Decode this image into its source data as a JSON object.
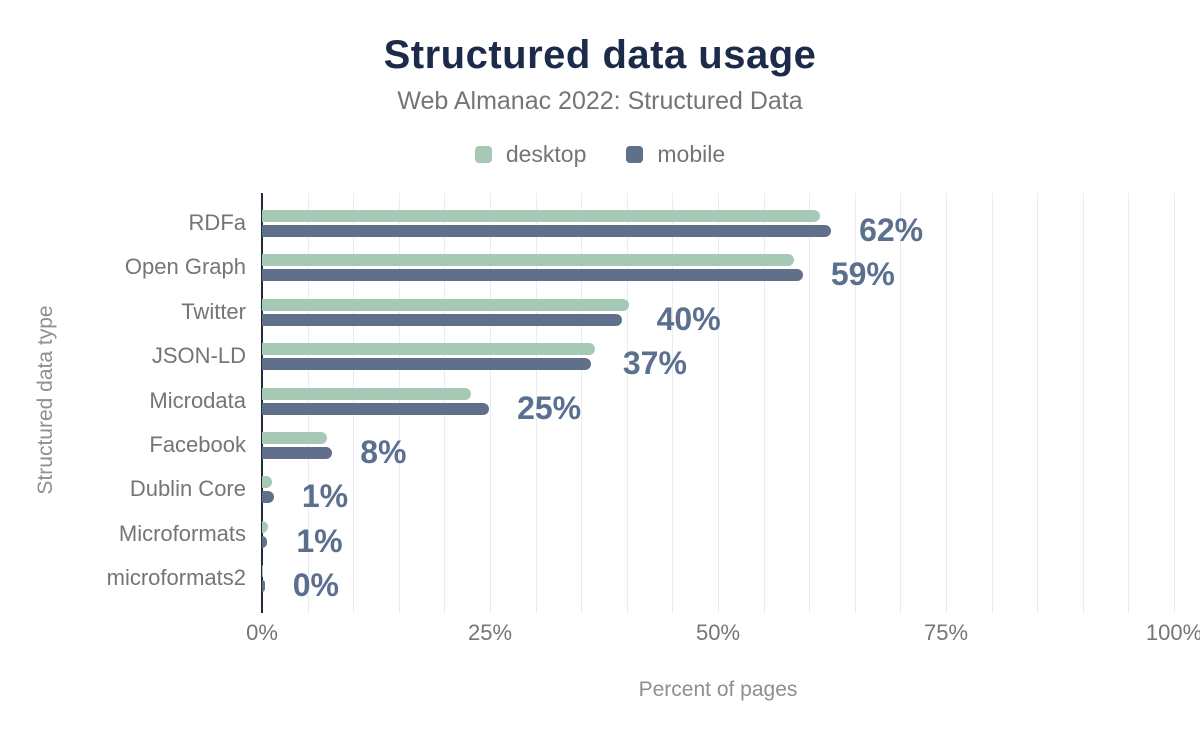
{
  "chart_data": {
    "type": "bar",
    "orientation": "horizontal",
    "title": "Structured data usage",
    "subtitle": "Web Almanac 2022: Structured Data",
    "xlabel": "Percent of pages",
    "ylabel": "Structured data type",
    "categories": [
      "RDFa",
      "Open Graph",
      "Twitter",
      "JSON-LD",
      "Microdata",
      "Facebook",
      "Dublin Core",
      "Microformats",
      "microformats2"
    ],
    "series": [
      {
        "name": "desktop",
        "color": "#a5c9b4",
        "values": [
          61.2,
          58.3,
          40.2,
          36.5,
          22.9,
          7.1,
          1.1,
          0.7,
          0.1
        ]
      },
      {
        "name": "mobile",
        "color": "#60708a",
        "values": [
          62.4,
          59.3,
          39.5,
          36.1,
          24.9,
          7.7,
          1.3,
          0.5,
          0.3
        ]
      }
    ],
    "value_labels": [
      "62%",
      "59%",
      "40%",
      "37%",
      "25%",
      "8%",
      "1%",
      "1%",
      "0%"
    ],
    "x_ticks": [
      {
        "label": "0%",
        "value": 0
      },
      {
        "label": "25%",
        "value": 25
      },
      {
        "label": "50%",
        "value": 50
      },
      {
        "label": "75%",
        "value": 75
      },
      {
        "label": "100%",
        "value": 100
      }
    ],
    "xlim": [
      0,
      100
    ],
    "grid": true,
    "grid_step": 5,
    "legend_position": "top"
  },
  "colors": {
    "background": "#ffffff",
    "title": "#1c2b4a",
    "subtitle": "#757575",
    "legend_label": "#757575",
    "category_label": "#757575",
    "tick_label": "#757575",
    "axis_title": "#8f8f8f",
    "value_label": "#5b6f8f",
    "gridline": "#e9edf0",
    "axis_line": "#222c3e"
  }
}
